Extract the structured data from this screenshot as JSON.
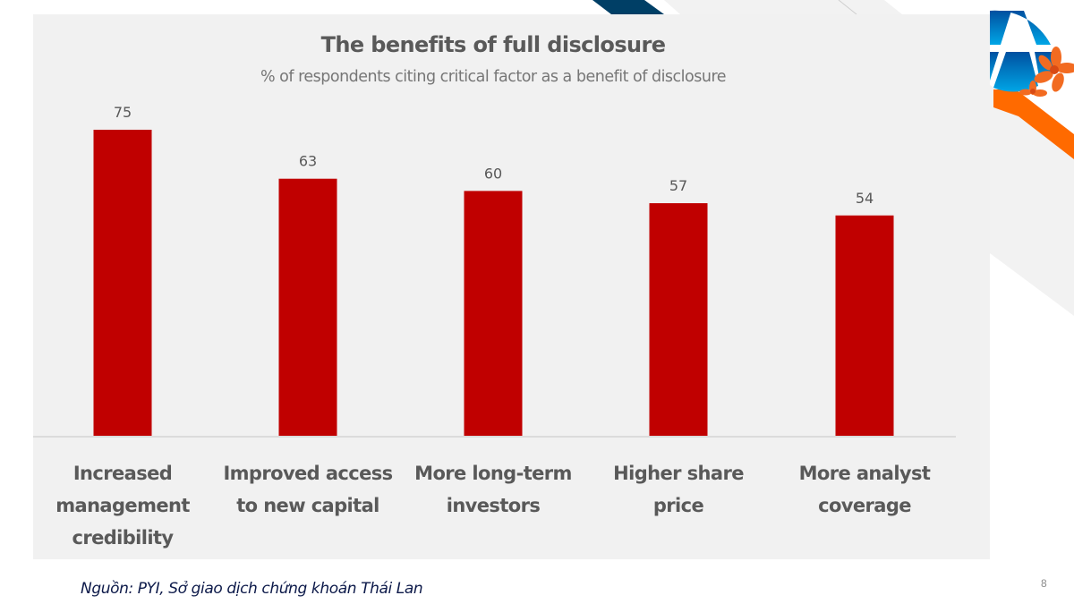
{
  "slide": {
    "source_note": "Nguồn: PYI, Sở giao dịch chứng khoán Thái Lan",
    "page_number": "8",
    "logo_icon": "airplane-flower-logo-icon"
  },
  "colors": {
    "bar": "#C00000",
    "text": "#595959",
    "panel": "#f1f1f1",
    "navy_stripe": "#003f66",
    "orange_accent": "#ff6a00",
    "logo_blue": "#0070c0"
  },
  "chart_data": {
    "type": "bar",
    "title": "The benefits of full disclosure",
    "subtitle": "% of respondents citing critical factor as a benefit of disclosure",
    "categories": [
      [
        "Increased",
        "management",
        "credibility"
      ],
      [
        "Improved access",
        "to new capital"
      ],
      [
        "More long-term",
        "investors"
      ],
      [
        "Higher share",
        "price"
      ],
      [
        "More analyst",
        "coverage"
      ]
    ],
    "values": [
      75,
      63,
      60,
      57,
      54
    ],
    "data_labels": [
      "75",
      "63",
      "60",
      "57",
      "54"
    ],
    "xlabel": "",
    "ylabel": "",
    "ylim": [
      0,
      100
    ],
    "grid": false,
    "legend": "none"
  }
}
